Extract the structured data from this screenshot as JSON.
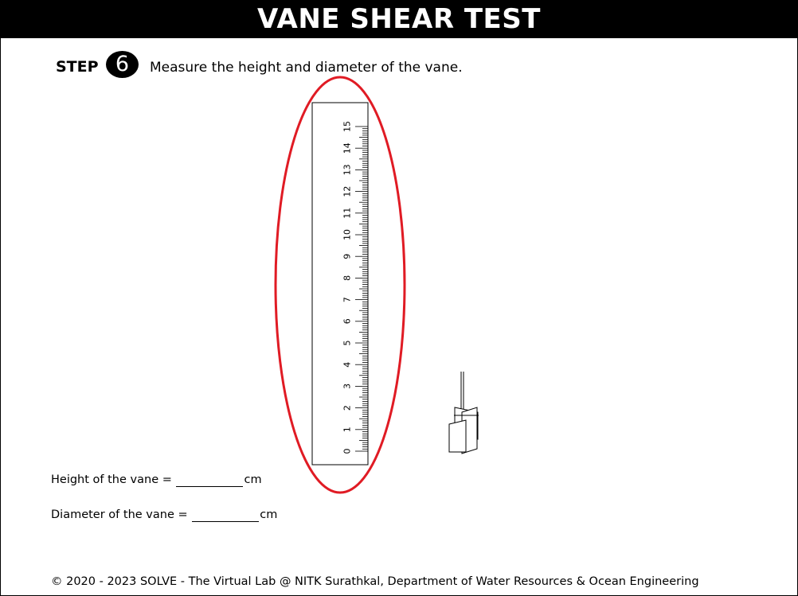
{
  "header": {
    "title": "VANE SHEAR TEST"
  },
  "step": {
    "label": "STEP",
    "number": "6",
    "instruction": "Measure the height and diameter of the vane."
  },
  "ruler": {
    "unit": "cm",
    "major_labels": [
      "0",
      "1",
      "2",
      "3",
      "4",
      "5",
      "6",
      "7",
      "8",
      "9",
      "10",
      "11",
      "12",
      "13",
      "14",
      "15"
    ],
    "highlight_color": "#e01b24"
  },
  "form": {
    "height_label": "Height of the vane =",
    "height_value": "",
    "height_unit": "cm",
    "diameter_label": "Diameter of the vane =",
    "diameter_value": "",
    "diameter_unit": "cm"
  },
  "footer": {
    "text": "© 2020 - 2023 SOLVE - The Virtual Lab @ NITK Surathkal, Department of Water Resources & Ocean Engineering"
  }
}
